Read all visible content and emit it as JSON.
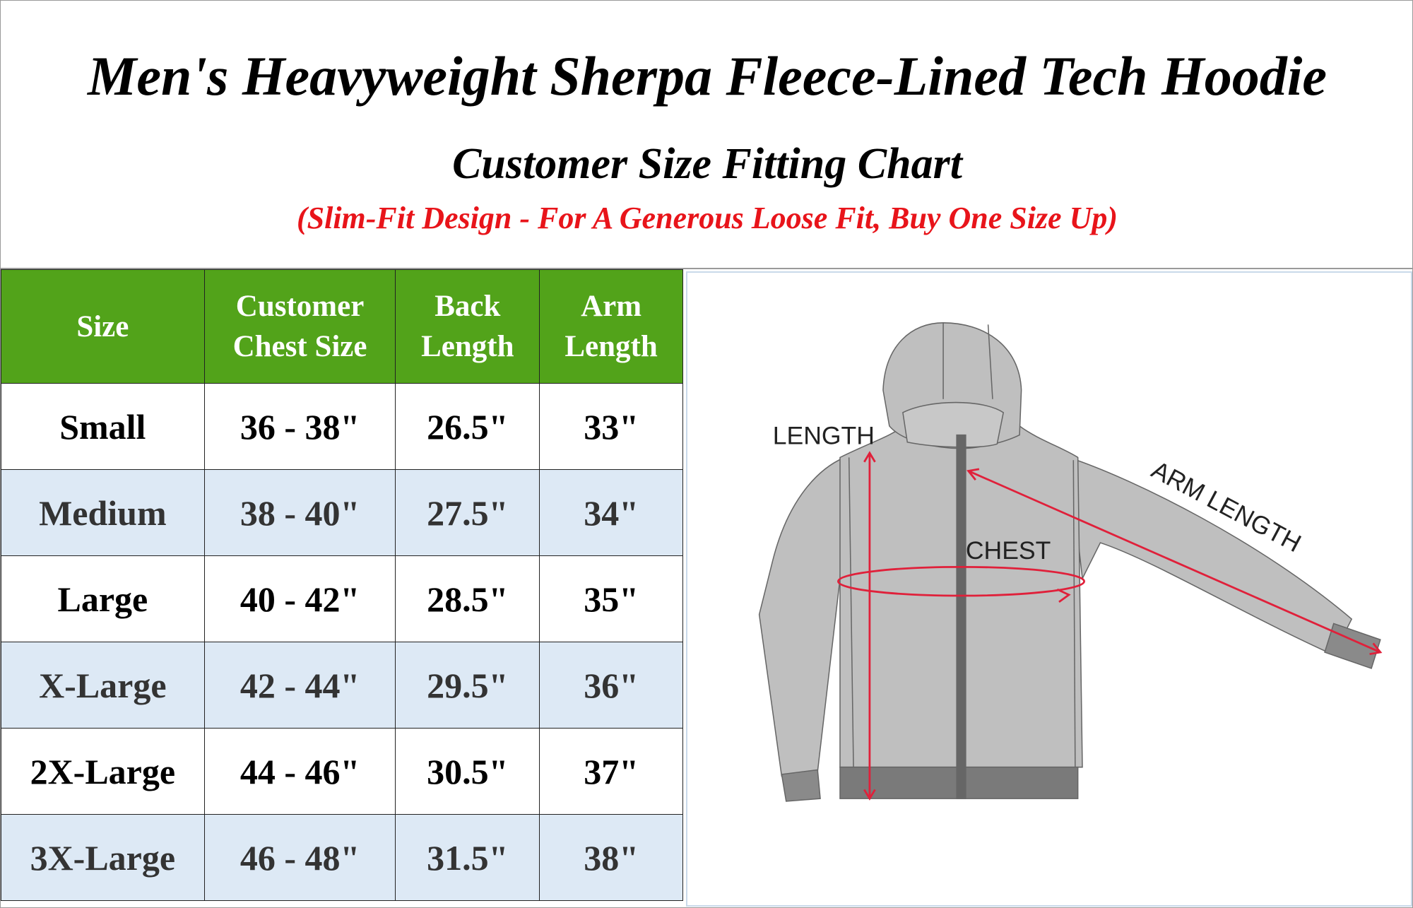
{
  "header": {
    "title": "Men's Heavyweight Sherpa Fleece-Lined Tech Hoodie",
    "subtitle": "Customer Size Fitting Chart",
    "note": "(Slim-Fit Design - For A Generous Loose Fit, Buy One Size Up)"
  },
  "table": {
    "columns": [
      "Size",
      "Customer\nChest Size",
      "Back\nLength",
      "Arm\nLength"
    ],
    "column_lines": [
      [
        "Size"
      ],
      [
        "Customer",
        "Chest Size"
      ],
      [
        "Back",
        "Length"
      ],
      [
        "Arm",
        "Length"
      ]
    ],
    "rows": [
      [
        "Small",
        "36 - 38\"",
        "26.5\"",
        "33\""
      ],
      [
        "Medium",
        "38 - 40\"",
        "27.5\"",
        "34\""
      ],
      [
        "Large",
        "40 - 42\"",
        "28.5\"",
        "35\""
      ],
      [
        "X-Large",
        "42 - 44\"",
        "29.5\"",
        "36\""
      ],
      [
        "2X-Large",
        "44 - 46\"",
        "30.5\"",
        "37\""
      ],
      [
        "3X-Large",
        "46 - 48\"",
        "31.5\"",
        "38\""
      ]
    ]
  },
  "diagram": {
    "labels": {
      "length": "LENGTH",
      "chest": "CHEST",
      "arm_length": "ARM LENGTH"
    }
  },
  "colors": {
    "header_green": "#52a31a",
    "alt_row": "#dde9f5",
    "note_red": "#e8141a",
    "measure_red": "#e0203a"
  }
}
